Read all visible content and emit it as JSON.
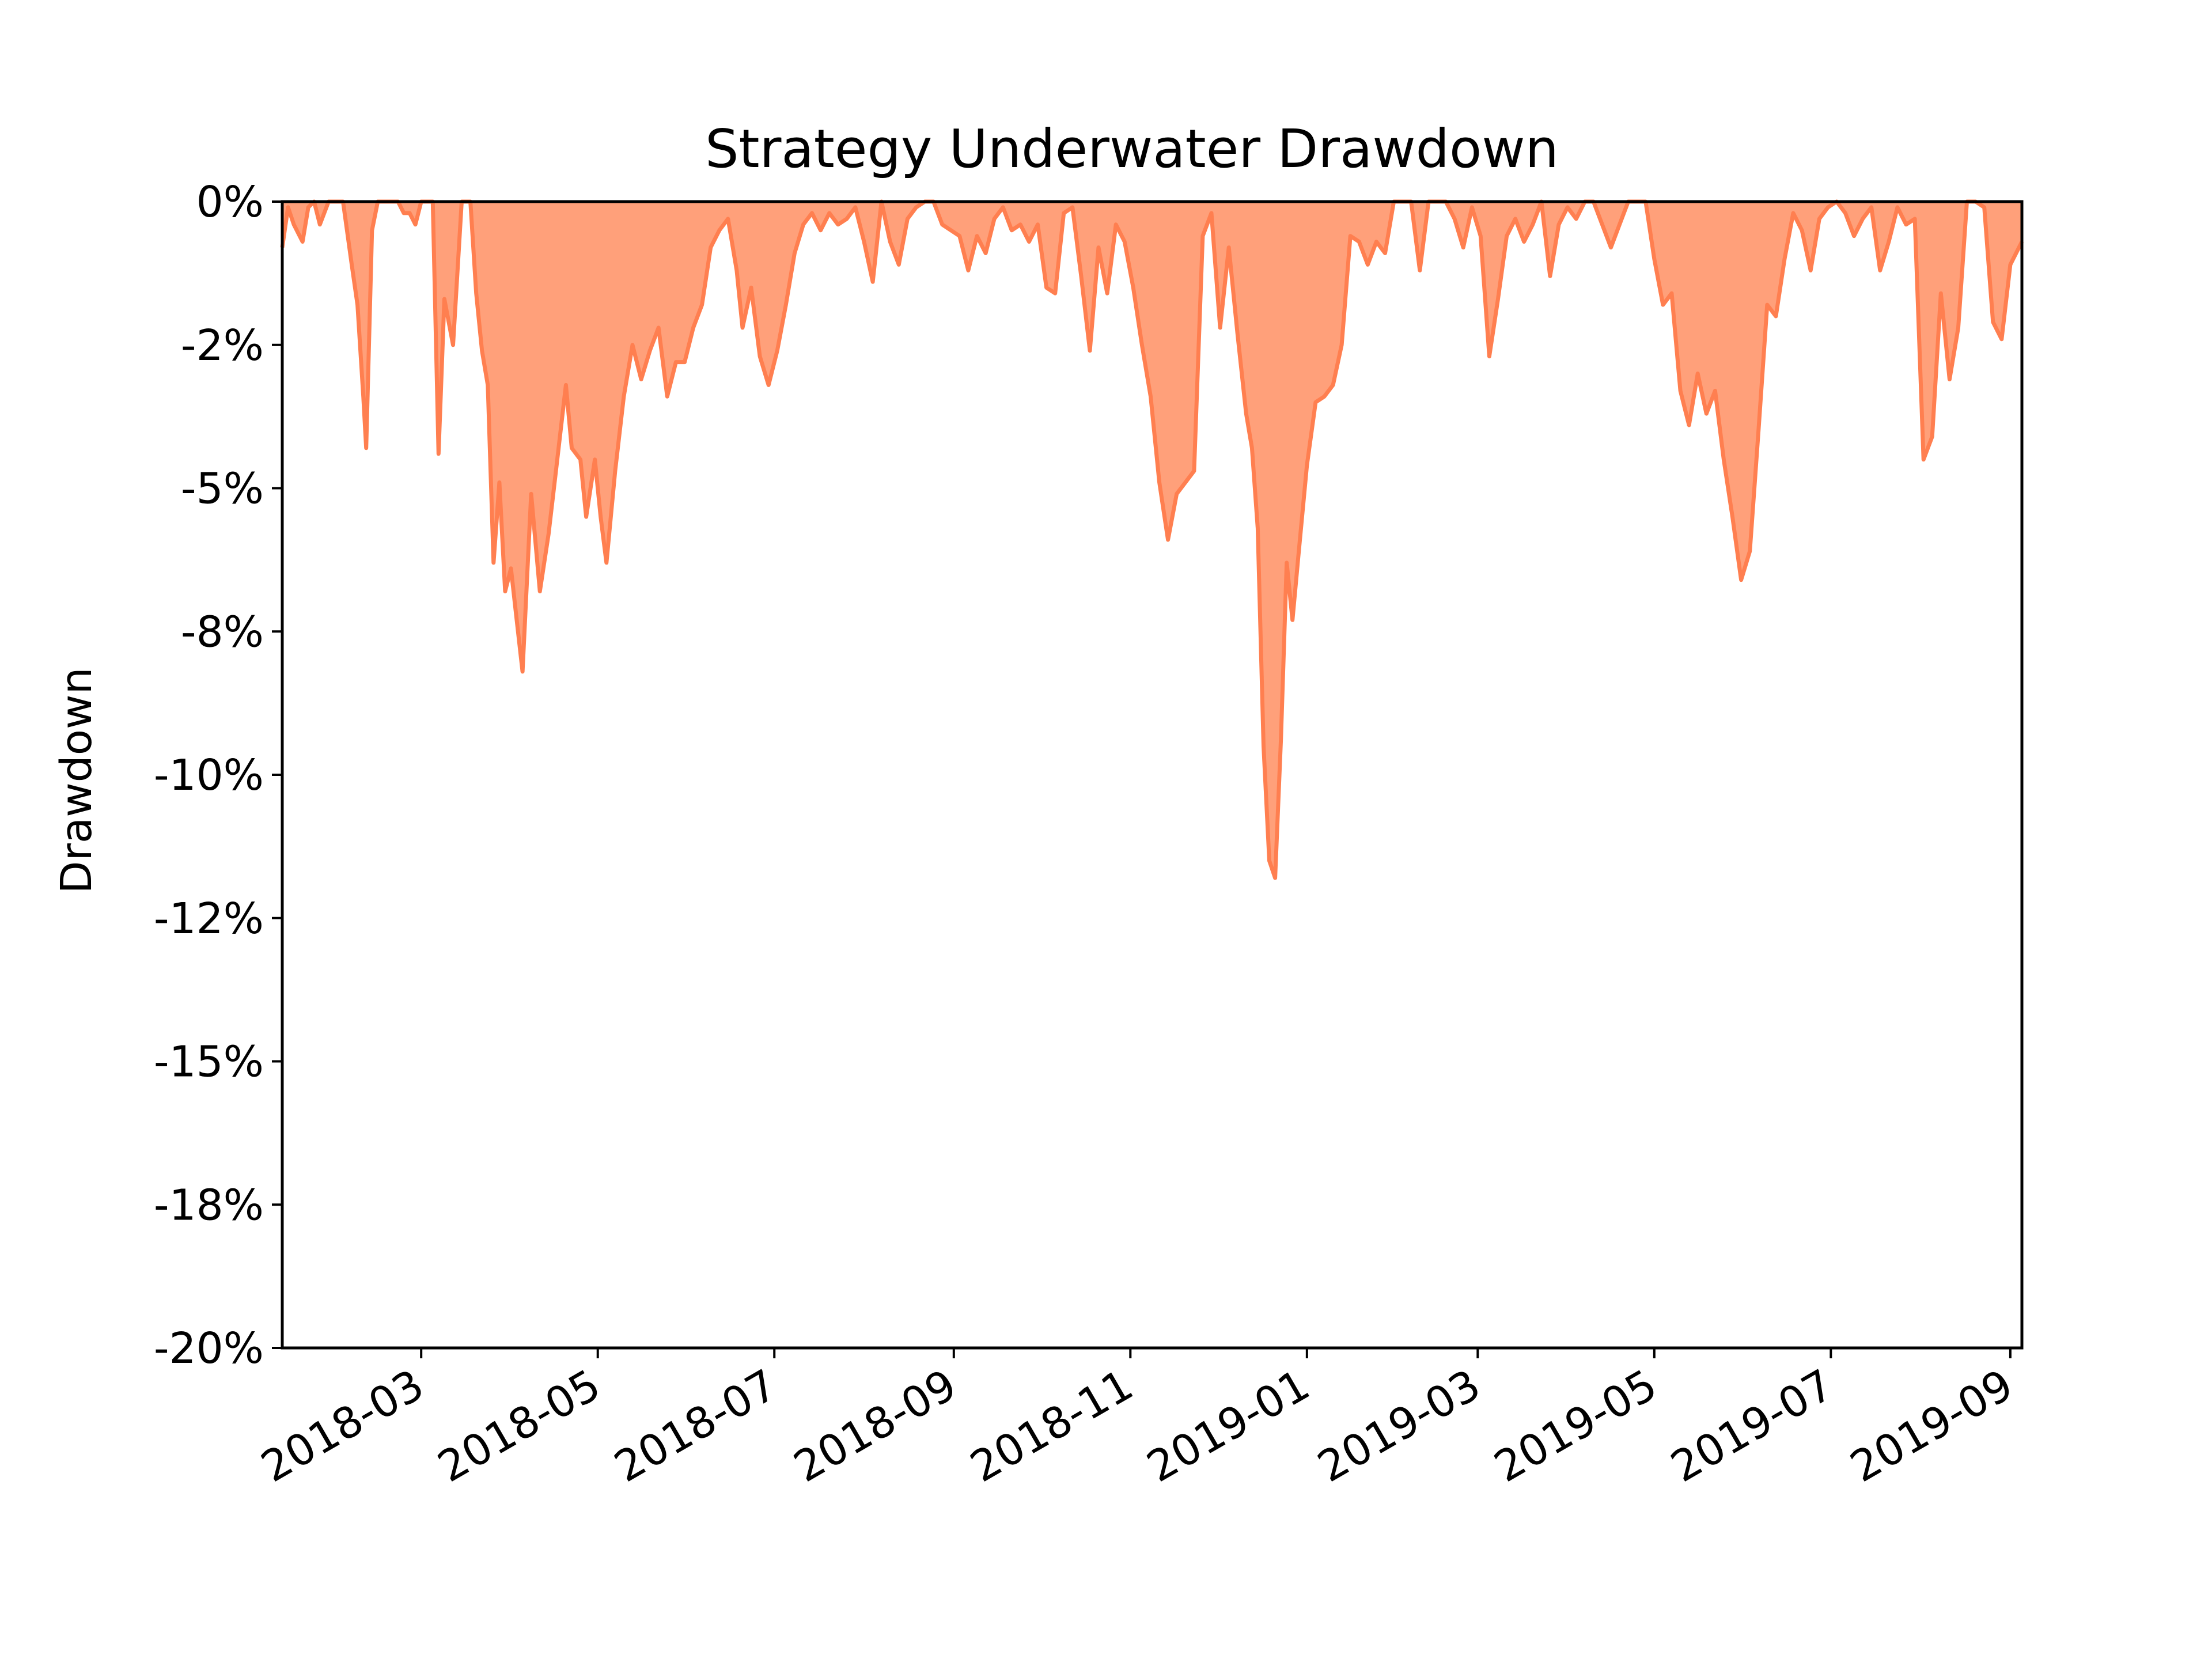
{
  "chart_data": {
    "type": "area",
    "title": "Strategy Underwater Drawdown",
    "xlabel": "",
    "ylabel": "Drawdown",
    "ylim": [
      -0.2,
      0
    ],
    "xlim": [
      "2018-01-12",
      "2019-09-05"
    ],
    "yticks": [
      {
        "value": 0,
        "label": "0%"
      },
      {
        "value": -0.025,
        "label": "-2%"
      },
      {
        "value": -0.05,
        "label": "-5%"
      },
      {
        "value": -0.075,
        "label": "-8%"
      },
      {
        "value": -0.1,
        "label": "-10%"
      },
      {
        "value": -0.125,
        "label": "-12%"
      },
      {
        "value": -0.15,
        "label": "-15%"
      },
      {
        "value": -0.175,
        "label": "-18%"
      },
      {
        "value": -0.2,
        "label": "-20%"
      }
    ],
    "xticks": [
      {
        "date": "2018-03-01",
        "label": "2018-03"
      },
      {
        "date": "2018-05-01",
        "label": "2018-05"
      },
      {
        "date": "2018-07-01",
        "label": "2018-07"
      },
      {
        "date": "2018-09-01",
        "label": "2018-09"
      },
      {
        "date": "2018-11-01",
        "label": "2018-11"
      },
      {
        "date": "2019-01-01",
        "label": "2019-01"
      },
      {
        "date": "2019-03-01",
        "label": "2019-03"
      },
      {
        "date": "2019-05-01",
        "label": "2019-05"
      },
      {
        "date": "2019-07-01",
        "label": "2019-07"
      },
      {
        "date": "2019-09-01",
        "label": "2019-09"
      }
    ],
    "fill_color": "#ffa07a",
    "line_color": "#ff7f50",
    "series": [
      {
        "name": "Drawdown",
        "x": [
          "2018-01-12",
          "2018-01-14",
          "2018-01-16",
          "2018-01-19",
          "2018-01-21",
          "2018-01-23",
          "2018-01-25",
          "2018-01-28",
          "2018-01-30",
          "2018-02-02",
          "2018-02-05",
          "2018-02-07",
          "2018-02-09",
          "2018-02-10",
          "2018-02-12",
          "2018-02-14",
          "2018-02-16",
          "2018-02-18",
          "2018-02-21",
          "2018-02-23",
          "2018-02-25",
          "2018-02-27",
          "2018-03-01",
          "2018-03-03",
          "2018-03-05",
          "2018-03-07",
          "2018-03-09",
          "2018-03-12",
          "2018-03-15",
          "2018-03-18",
          "2018-03-20",
          "2018-03-22",
          "2018-03-24",
          "2018-03-26",
          "2018-03-28",
          "2018-03-30",
          "2018-04-01",
          "2018-04-03",
          "2018-04-05",
          "2018-04-08",
          "2018-04-11",
          "2018-04-14",
          "2018-04-17",
          "2018-04-20",
          "2018-04-22",
          "2018-04-25",
          "2018-04-27",
          "2018-04-30",
          "2018-05-02",
          "2018-05-04",
          "2018-05-07",
          "2018-05-10",
          "2018-05-13",
          "2018-05-16",
          "2018-05-19",
          "2018-05-22",
          "2018-05-25",
          "2018-05-28",
          "2018-05-31",
          "2018-06-03",
          "2018-06-06",
          "2018-06-09",
          "2018-06-12",
          "2018-06-15",
          "2018-06-18",
          "2018-06-20",
          "2018-06-23",
          "2018-06-26",
          "2018-06-29",
          "2018-07-02",
          "2018-07-05",
          "2018-07-08",
          "2018-07-11",
          "2018-07-14",
          "2018-07-17",
          "2018-07-20",
          "2018-07-23",
          "2018-07-26",
          "2018-07-29",
          "2018-08-01",
          "2018-08-04",
          "2018-08-07",
          "2018-08-10",
          "2018-08-13",
          "2018-08-16",
          "2018-08-19",
          "2018-08-22",
          "2018-08-25",
          "2018-08-28",
          "2018-08-31",
          "2018-09-03",
          "2018-09-06",
          "2018-09-09",
          "2018-09-12",
          "2018-09-15",
          "2018-09-18",
          "2018-09-21",
          "2018-09-24",
          "2018-09-27",
          "2018-09-30",
          "2018-10-03",
          "2018-10-06",
          "2018-10-09",
          "2018-10-12",
          "2018-10-15",
          "2018-10-18",
          "2018-10-21",
          "2018-10-24",
          "2018-10-27",
          "2018-10-30",
          "2018-11-02",
          "2018-11-05",
          "2018-11-08",
          "2018-11-11",
          "2018-11-14",
          "2018-11-17",
          "2018-11-20",
          "2018-11-23",
          "2018-11-26",
          "2018-11-29",
          "2018-12-02",
          "2018-12-05",
          "2018-12-08",
          "2018-12-11",
          "2018-12-13",
          "2018-12-15",
          "2018-12-17",
          "2018-12-19",
          "2018-12-21",
          "2018-12-23",
          "2018-12-25",
          "2018-12-27",
          "2018-12-29",
          "2019-01-01",
          "2019-01-04",
          "2019-01-07",
          "2019-01-10",
          "2019-01-13",
          "2019-01-16",
          "2019-01-19",
          "2019-01-22",
          "2019-01-25",
          "2019-01-28",
          "2019-01-31",
          "2019-02-03",
          "2019-02-06",
          "2019-02-09",
          "2019-02-12",
          "2019-02-15",
          "2019-02-18",
          "2019-02-21",
          "2019-02-24",
          "2019-02-27",
          "2019-03-02",
          "2019-03-05",
          "2019-03-08",
          "2019-03-11",
          "2019-03-14",
          "2019-03-17",
          "2019-03-20",
          "2019-03-23",
          "2019-03-26",
          "2019-03-29",
          "2019-04-01",
          "2019-04-04",
          "2019-04-07",
          "2019-04-10",
          "2019-04-13",
          "2019-04-16",
          "2019-04-19",
          "2019-04-22",
          "2019-04-25",
          "2019-04-28",
          "2019-05-01",
          "2019-05-04",
          "2019-05-07",
          "2019-05-10",
          "2019-05-13",
          "2019-05-16",
          "2019-05-19",
          "2019-05-22",
          "2019-05-25",
          "2019-05-28",
          "2019-05-31",
          "2019-06-03",
          "2019-06-06",
          "2019-06-09",
          "2019-06-12",
          "2019-06-15",
          "2019-06-18",
          "2019-06-21",
          "2019-06-24",
          "2019-06-27",
          "2019-06-30",
          "2019-07-03",
          "2019-07-06",
          "2019-07-09",
          "2019-07-12",
          "2019-07-15",
          "2019-07-18",
          "2019-07-21",
          "2019-07-24",
          "2019-07-27",
          "2019-07-30",
          "2019-08-02",
          "2019-08-05",
          "2019-08-08",
          "2019-08-11",
          "2019-08-14",
          "2019-08-17",
          "2019-08-20",
          "2019-08-23",
          "2019-08-26",
          "2019-08-29",
          "2019-09-01",
          "2019-09-05"
        ],
        "values": [
          -0.008,
          -0.001,
          -0.004,
          -0.007,
          -0.001,
          0,
          -0.004,
          0,
          0,
          0,
          -0.011,
          -0.018,
          -0.034,
          -0.043,
          -0.005,
          0,
          0,
          0,
          0,
          -0.002,
          -0.002,
          -0.004,
          0,
          0,
          0,
          -0.044,
          -0.017,
          -0.025,
          0,
          0,
          -0.016,
          -0.026,
          -0.032,
          -0.063,
          -0.049,
          -0.068,
          -0.064,
          -0.073,
          -0.082,
          -0.051,
          -0.068,
          -0.058,
          -0.045,
          -0.032,
          -0.043,
          -0.045,
          -0.055,
          -0.045,
          -0.055,
          -0.063,
          -0.047,
          -0.034,
          -0.025,
          -0.031,
          -0.026,
          -0.022,
          -0.034,
          -0.028,
          -0.028,
          -0.022,
          -0.018,
          -0.008,
          -0.005,
          -0.003,
          -0.012,
          -0.022,
          -0.015,
          -0.027,
          -0.032,
          -0.026,
          -0.018,
          -0.009,
          -0.004,
          -0.002,
          -0.005,
          -0.002,
          -0.004,
          -0.003,
          -0.001,
          -0.007,
          -0.014,
          0,
          -0.007,
          -0.011,
          -0.003,
          -0.001,
          0,
          0,
          -0.004,
          -0.005,
          -0.006,
          -0.012,
          -0.006,
          -0.009,
          -0.003,
          -0.001,
          -0.005,
          -0.004,
          -0.007,
          -0.004,
          -0.015,
          -0.016,
          -0.002,
          -0.001,
          -0.013,
          -0.026,
          -0.008,
          -0.016,
          -0.004,
          -0.007,
          -0.015,
          -0.025,
          -0.034,
          -0.049,
          -0.059,
          -0.051,
          -0.049,
          -0.047,
          -0.006,
          -0.002,
          -0.022,
          -0.008,
          -0.023,
          -0.037,
          -0.043,
          -0.057,
          -0.095,
          -0.115,
          -0.118,
          -0.094,
          -0.063,
          -0.073,
          -0.062,
          -0.046,
          -0.035,
          -0.034,
          -0.032,
          -0.025,
          -0.006,
          -0.007,
          -0.011,
          -0.007,
          -0.009,
          0,
          0,
          0,
          -0.012,
          0,
          0,
          0,
          -0.003,
          -0.008,
          -0.001,
          -0.006,
          -0.027,
          -0.017,
          -0.006,
          -0.003,
          -0.007,
          -0.004,
          0,
          -0.013,
          -0.004,
          -0.001,
          -0.003,
          0,
          0,
          -0.004,
          -0.008,
          -0.004,
          0,
          0,
          0,
          -0.01,
          -0.018,
          -0.016,
          -0.033,
          -0.039,
          -0.03,
          -0.037,
          -0.033,
          -0.045,
          -0.055,
          -0.066,
          -0.061,
          -0.04,
          -0.018,
          -0.02,
          -0.01,
          -0.002,
          -0.005,
          -0.012,
          -0.003,
          -0.001,
          0,
          -0.002,
          -0.006,
          -0.003,
          -0.001,
          -0.012,
          -0.007,
          -0.001,
          -0.004,
          -0.003,
          -0.045,
          -0.041,
          -0.016,
          -0.031,
          -0.022,
          0,
          0,
          -0.001,
          -0.021,
          -0.024,
          -0.011,
          -0.007
        ]
      }
    ]
  }
}
